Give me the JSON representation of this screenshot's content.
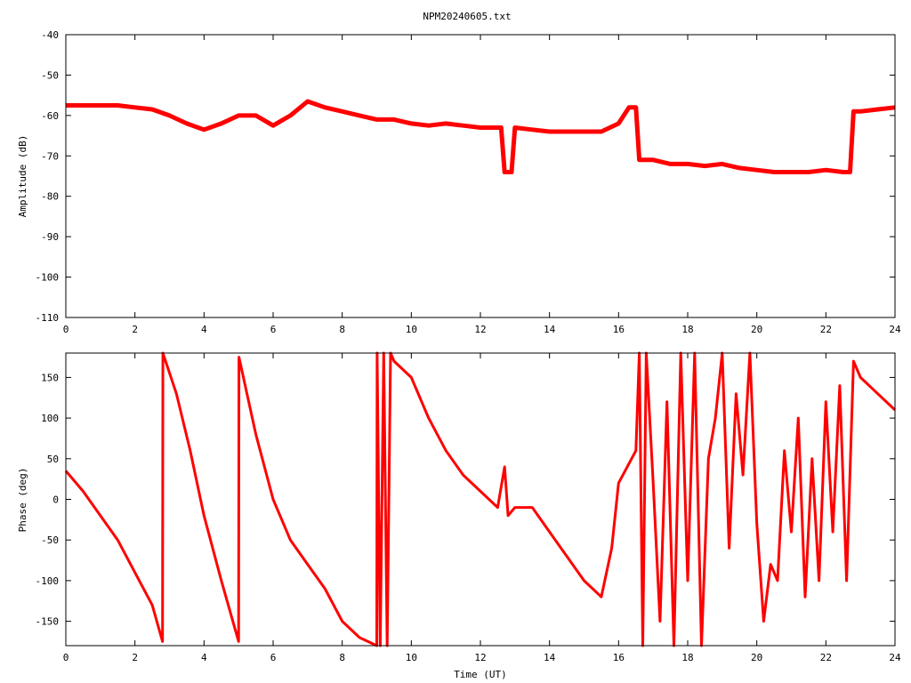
{
  "chart_data": [
    {
      "type": "line",
      "title": "NPM20240605.txt",
      "xlabel": "",
      "ylabel": "Amplitude (dB)",
      "xlim": [
        0,
        24
      ],
      "ylim": [
        -110,
        -40
      ],
      "xticks": [
        "0",
        "2",
        "4",
        "6",
        "8",
        "10",
        "12",
        "14",
        "16",
        "18",
        "20",
        "22",
        "24"
      ],
      "yticks": [
        "-40",
        "-50",
        "-60",
        "-70",
        "-80",
        "-90",
        "-100",
        "-110"
      ],
      "grid": false,
      "color": "#ff0000",
      "series": [
        {
          "x": [
            0,
            0.5,
            1,
            1.5,
            2,
            2.5,
            3,
            3.5,
            4,
            4.5,
            5,
            5.5,
            6,
            6.5,
            7,
            7.5,
            8,
            8.5,
            9,
            9.5,
            10,
            10.5,
            11,
            11.5,
            12,
            12.5,
            12.6,
            12.7,
            12.9,
            13,
            13.5,
            14,
            14.5,
            15,
            15.5,
            16,
            16.3,
            16.5,
            16.6,
            17,
            17.5,
            18,
            18.5,
            19,
            19.5,
            20,
            20.5,
            21,
            21.5,
            22,
            22.5,
            22.7,
            22.8,
            23,
            23.5,
            24
          ],
          "y": [
            -57.5,
            -57.5,
            -57.5,
            -57.5,
            -58,
            -58.5,
            -60,
            -62,
            -63.5,
            -62,
            -60,
            -60,
            -62.5,
            -60,
            -56.5,
            -58,
            -59,
            -60,
            -61,
            -61,
            -62,
            -62.5,
            -62,
            -62.5,
            -63,
            -63,
            -63,
            -74,
            -74,
            -63,
            -63.5,
            -64,
            -64,
            -64,
            -64,
            -62,
            -58,
            -58,
            -71,
            -71,
            -72,
            -72,
            -72.5,
            -72,
            -73,
            -73.5,
            -74,
            -74,
            -74,
            -73.5,
            -74,
            -74,
            -59,
            -59,
            -58.5,
            -58
          ]
        }
      ]
    },
    {
      "type": "line",
      "title": "",
      "xlabel": "Time (UT)",
      "ylabel": "Phase (deg)",
      "xlim": [
        0,
        24
      ],
      "ylim": [
        -180,
        180
      ],
      "xticks": [
        "0",
        "2",
        "4",
        "6",
        "8",
        "10",
        "12",
        "14",
        "16",
        "18",
        "20",
        "22",
        "24"
      ],
      "yticks": [
        "150",
        "100",
        "50",
        "0",
        "-50",
        "-100",
        "-150"
      ],
      "grid": false,
      "color": "#ff0000",
      "series": [
        {
          "x": [
            0,
            0.5,
            1,
            1.5,
            2,
            2.5,
            2.8,
            2.81,
            3.2,
            3.6,
            4,
            4.5,
            5,
            5.01,
            5.5,
            6,
            6.5,
            7,
            7.5,
            8,
            8.5,
            9,
            9.01,
            9.1,
            9.2,
            9.3,
            9.4,
            9.5,
            10,
            10.5,
            11,
            11.5,
            12,
            12.5,
            12.7,
            12.8,
            13,
            13.5,
            14,
            14.5,
            15,
            15.5,
            15.8,
            16,
            16.5,
            16.6,
            16.7,
            16.8,
            17,
            17.2,
            17.4,
            17.6,
            17.8,
            18,
            18.2,
            18.4,
            18.6,
            18.8,
            19,
            19.2,
            19.4,
            19.6,
            19.8,
            20,
            20.2,
            20.4,
            20.6,
            20.8,
            21,
            21.2,
            21.4,
            21.6,
            21.8,
            22,
            22.2,
            22.4,
            22.6,
            22.8,
            23,
            23.5,
            24
          ],
          "y": [
            35,
            10,
            -20,
            -50,
            -90,
            -130,
            -175,
            180,
            130,
            60,
            -20,
            -100,
            -175,
            175,
            80,
            0,
            -50,
            -80,
            -110,
            -150,
            -170,
            -180,
            180,
            -180,
            180,
            -180,
            180,
            170,
            150,
            100,
            60,
            30,
            10,
            -10,
            40,
            -20,
            -10,
            -10,
            -40,
            -70,
            -100,
            -120,
            -60,
            20,
            60,
            180,
            -180,
            180,
            20,
            -150,
            120,
            -180,
            180,
            -100,
            180,
            -180,
            50,
            100,
            180,
            -60,
            130,
            30,
            180,
            -30,
            -150,
            -80,
            -100,
            60,
            -40,
            100,
            -120,
            50,
            -100,
            120,
            -40,
            140,
            -100,
            170,
            150,
            130,
            110
          ]
        }
      ]
    }
  ]
}
